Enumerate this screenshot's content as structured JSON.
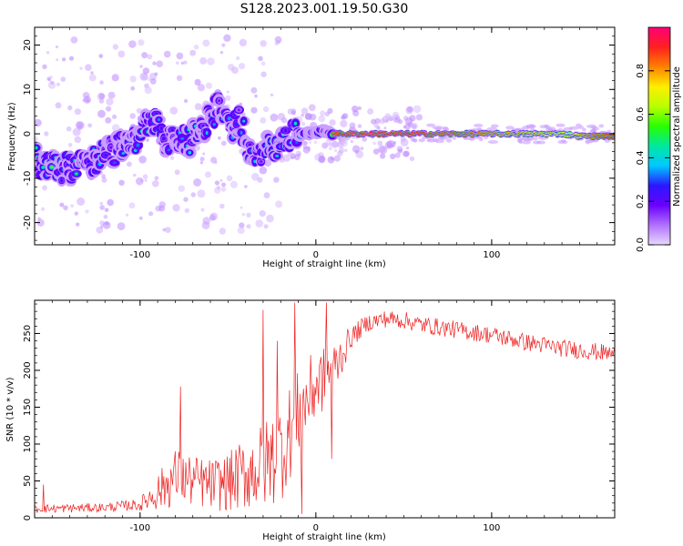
{
  "title": "S128.2023.001.19.50.G30",
  "chart_data": [
    {
      "type": "heatmap",
      "xlabel": "Height of straight line (km)",
      "ylabel": "Frequency (Hz)",
      "xlim": [
        -160,
        170
      ],
      "ylim": [
        -25,
        24
      ],
      "xticks": [
        -100,
        0,
        100
      ],
      "yticks": [
        -20,
        -10,
        0,
        10,
        20
      ],
      "grid": false,
      "colorbar": {
        "label": "Normalized spectral amplitude",
        "range": [
          0,
          1
        ],
        "ticks": [
          "0.0",
          "0.2",
          "0.4",
          "0.6",
          "0.8"
        ],
        "colors": [
          "#e8d8ff",
          "#b070ff",
          "#6a00ff",
          "#2a18ff",
          "#00c8ff",
          "#00e8a0",
          "#28ff00",
          "#b8ff00",
          "#ffee00",
          "#ff8000",
          "#ff2020",
          "#ff0078"
        ]
      },
      "ridge": [
        {
          "x": -158,
          "y": -6,
          "a": 0.45
        },
        {
          "x": -152,
          "y": -7,
          "a": 0.5
        },
        {
          "x": -146,
          "y": -8,
          "a": 0.55
        },
        {
          "x": -140,
          "y": -7.5,
          "a": 0.45
        },
        {
          "x": -134,
          "y": -7,
          "a": 0.5
        },
        {
          "x": -128,
          "y": -6.5,
          "a": 0.4
        },
        {
          "x": -122,
          "y": -5,
          "a": 0.35
        },
        {
          "x": -116,
          "y": -4,
          "a": 0.3
        },
        {
          "x": -110,
          "y": -3,
          "a": 0.35
        },
        {
          "x": -104,
          "y": -2,
          "a": 0.4
        },
        {
          "x": -98,
          "y": 1,
          "a": 0.5
        },
        {
          "x": -92,
          "y": 3,
          "a": 0.45
        },
        {
          "x": -86,
          "y": -2,
          "a": 0.4
        },
        {
          "x": -80,
          "y": -1,
          "a": 0.35
        },
        {
          "x": -74,
          "y": -2,
          "a": 0.4
        },
        {
          "x": -68,
          "y": 0,
          "a": 0.45
        },
        {
          "x": -62,
          "y": 2,
          "a": 0.4
        },
        {
          "x": -56,
          "y": 6,
          "a": 0.35
        },
        {
          "x": -50,
          "y": 1,
          "a": 0.4
        },
        {
          "x": -44,
          "y": 3,
          "a": 0.35
        },
        {
          "x": -38,
          "y": -3,
          "a": 0.4
        },
        {
          "x": -32,
          "y": -4,
          "a": 0.35
        },
        {
          "x": -26,
          "y": -3,
          "a": 0.45
        },
        {
          "x": -20,
          "y": -1.5,
          "a": 0.5
        },
        {
          "x": -14,
          "y": -0.5,
          "a": 0.55
        },
        {
          "x": -8,
          "y": 0,
          "a": 0.6
        },
        {
          "x": -2,
          "y": 0.5,
          "a": 0.65
        },
        {
          "x": 5,
          "y": 0.5,
          "a": 0.75
        },
        {
          "x": 12,
          "y": 0,
          "a": 0.9
        },
        {
          "x": 20,
          "y": 0,
          "a": 0.95
        },
        {
          "x": 30,
          "y": 0,
          "a": 0.95
        },
        {
          "x": 40,
          "y": 0,
          "a": 0.95
        },
        {
          "x": 50,
          "y": 0,
          "a": 0.95
        },
        {
          "x": 60,
          "y": 0,
          "a": 0.92
        },
        {
          "x": 70,
          "y": 0,
          "a": 0.85
        },
        {
          "x": 80,
          "y": 0,
          "a": 0.88
        },
        {
          "x": 90,
          "y": 0,
          "a": 0.82
        },
        {
          "x": 100,
          "y": 0,
          "a": 0.8
        },
        {
          "x": 110,
          "y": 0,
          "a": 0.78
        },
        {
          "x": 120,
          "y": 0,
          "a": 0.75
        },
        {
          "x": 130,
          "y": 0,
          "a": 0.72
        },
        {
          "x": 140,
          "y": 0,
          "a": 0.7
        },
        {
          "x": 150,
          "y": -0.5,
          "a": 0.75
        },
        {
          "x": 160,
          "y": -0.5,
          "a": 0.85
        },
        {
          "x": 168,
          "y": -0.5,
          "a": 0.9
        }
      ]
    },
    {
      "type": "line",
      "xlabel": "Height of straight line (km)",
      "ylabel": "SNR (10 * v/v)",
      "xlim": [
        -160,
        170
      ],
      "ylim": [
        0,
        295
      ],
      "xticks": [
        -100,
        0,
        100
      ],
      "yticks": [
        0,
        50,
        100,
        150,
        200,
        250
      ],
      "grid": false,
      "color": "#ee2222",
      "envelope": {
        "x": [
          -160,
          -120,
          -100,
          -90,
          -80,
          -70,
          -60,
          -50,
          -40,
          -30,
          -20,
          -10,
          0,
          10,
          20,
          30,
          40,
          50,
          60,
          80,
          100,
          120,
          140,
          160,
          170
        ],
        "y": [
          12,
          14,
          18,
          35,
          55,
          50,
          45,
          48,
          60,
          70,
          90,
          140,
          180,
          200,
          245,
          265,
          270,
          268,
          262,
          255,
          248,
          238,
          230,
          225,
          222
        ],
        "noise": [
          6,
          6,
          8,
          25,
          40,
          35,
          35,
          40,
          50,
          60,
          70,
          60,
          50,
          40,
          15,
          12,
          12,
          12,
          12,
          12,
          12,
          12,
          12,
          12,
          12
        ]
      },
      "spikes": [
        {
          "x": -155,
          "y": 45
        },
        {
          "x": -100,
          "y": 10
        },
        {
          "x": -77,
          "y": 178
        },
        {
          "x": -30,
          "y": 282
        },
        {
          "x": -22,
          "y": 240
        },
        {
          "x": -12,
          "y": 292
        },
        {
          "x": -8,
          "y": 5
        },
        {
          "x": 6,
          "y": 292
        },
        {
          "x": 9,
          "y": 80
        }
      ]
    }
  ]
}
